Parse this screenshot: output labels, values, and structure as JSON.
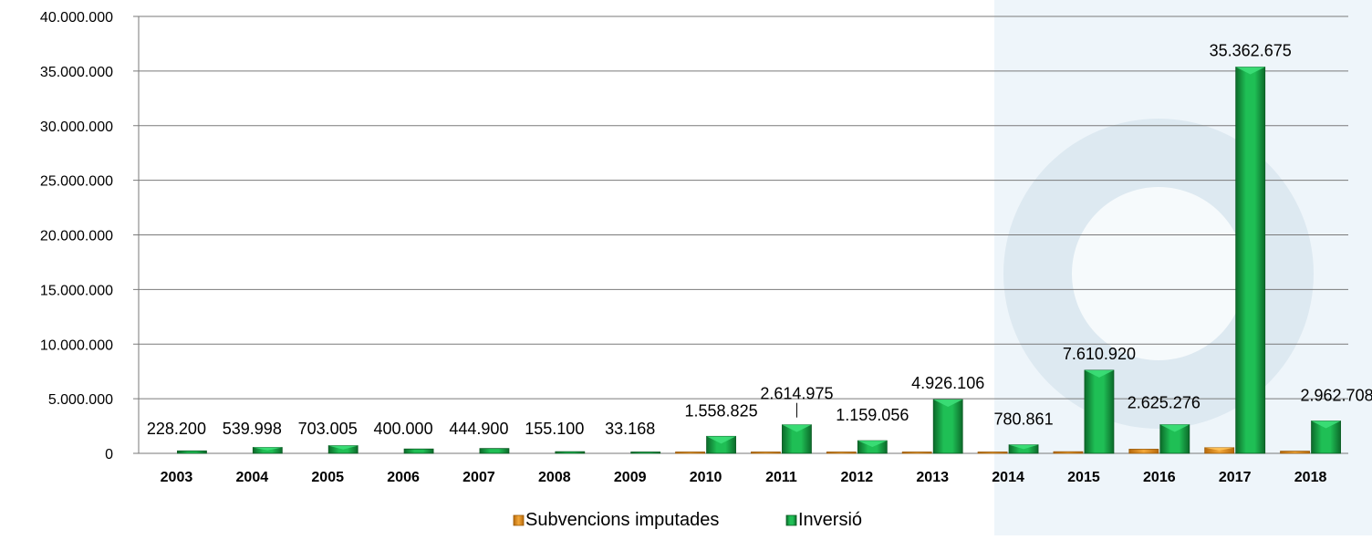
{
  "chart_data": {
    "type": "bar",
    "categories": [
      "2003",
      "2004",
      "2005",
      "2006",
      "2007",
      "2008",
      "2009",
      "2010",
      "2011",
      "2012",
      "2013",
      "2014",
      "2015",
      "2016",
      "2017",
      "2018"
    ],
    "series": [
      {
        "name": "Subvencions imputades",
        "color": "#e8961e",
        "values": [
          0,
          0,
          0,
          0,
          0,
          0,
          0,
          90000,
          60000,
          60000,
          60000,
          60000,
          150000,
          380000,
          520000,
          200000
        ]
      },
      {
        "name": "Inversió",
        "color": "#17a84a",
        "values": [
          228200,
          539998,
          703005,
          400000,
          444900,
          155100,
          33168,
          1558825,
          2614975,
          1159056,
          4926106,
          780861,
          7610920,
          2625276,
          35362675,
          2962708
        ]
      }
    ],
    "data_labels": [
      "228.200",
      "539.998",
      "703.005",
      "400.000",
      "444.900",
      "155.100",
      "33.168",
      "1.558.825",
      "2.614.975",
      "1.159.056",
      "4.926.106",
      "780.861",
      "7.610.920",
      "2.625.276",
      "35.362.675",
      "2.962.708"
    ],
    "y_ticks": [
      "0",
      "5.000.000",
      "10.000.000",
      "15.000.000",
      "20.000.000",
      "25.000.000",
      "30.000.000",
      "35.000.000",
      "40.000.000"
    ],
    "ylim": [
      0,
      40000000
    ],
    "grid": true,
    "legend_position": "bottom"
  }
}
